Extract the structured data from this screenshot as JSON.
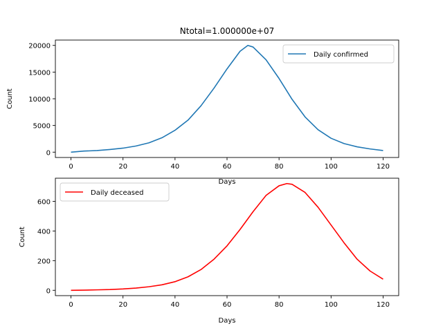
{
  "figure": {
    "title": "Ntotal=1.000000e+07"
  },
  "chart_data": [
    {
      "type": "line",
      "title": "Ntotal=1.000000e+07",
      "xlabel": "Days",
      "ylabel": "Count",
      "xlim": [
        -6,
        126
      ],
      "ylim": [
        -1000,
        21000
      ],
      "xticks": [
        0,
        20,
        40,
        60,
        80,
        100,
        120
      ],
      "yticks": [
        0,
        5000,
        10000,
        15000,
        20000
      ],
      "legend_position": "upper right",
      "grid": false,
      "series": [
        {
          "name": "Daily confirmed",
          "color": "#1f77b4",
          "x": [
            0,
            5,
            10,
            15,
            20,
            25,
            30,
            35,
            40,
            45,
            50,
            55,
            60,
            65,
            68,
            70,
            75,
            80,
            85,
            90,
            95,
            100,
            105,
            110,
            115,
            120
          ],
          "y": [
            0,
            200,
            300,
            500,
            750,
            1150,
            1750,
            2700,
            4100,
            6000,
            8700,
            12000,
            15600,
            18900,
            20000,
            19700,
            17300,
            13800,
            9900,
            6600,
            4200,
            2600,
            1600,
            1000,
            600,
            300
          ]
        }
      ]
    },
    {
      "type": "line",
      "title": "",
      "xlabel": "Days",
      "ylabel": "Count",
      "xlim": [
        -6,
        126
      ],
      "ylim": [
        -36,
        756
      ],
      "xticks": [
        0,
        20,
        40,
        60,
        80,
        100,
        120
      ],
      "yticks": [
        0,
        200,
        400,
        600
      ],
      "legend_position": "upper left",
      "grid": false,
      "series": [
        {
          "name": "Daily deceased",
          "color": "#ff0000",
          "x": [
            0,
            5,
            10,
            15,
            20,
            25,
            30,
            35,
            40,
            45,
            50,
            55,
            60,
            65,
            70,
            75,
            80,
            83,
            85,
            90,
            95,
            100,
            105,
            110,
            115,
            120
          ],
          "y": [
            0,
            1,
            3,
            5,
            9,
            15,
            24,
            37,
            58,
            91,
            140,
            210,
            300,
            410,
            530,
            640,
            705,
            720,
            715,
            660,
            560,
            440,
            320,
            210,
            130,
            75
          ]
        }
      ]
    }
  ]
}
